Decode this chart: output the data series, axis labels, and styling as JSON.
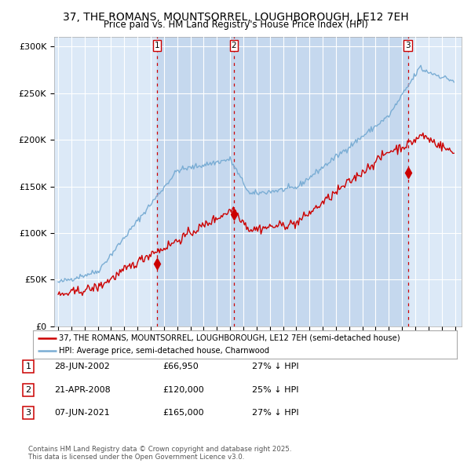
{
  "title": "37, THE ROMANS, MOUNTSORREL, LOUGHBOROUGH, LE12 7EH",
  "subtitle": "Price paid vs. HM Land Registry's House Price Index (HPI)",
  "title_fontsize": 10,
  "subtitle_fontsize": 8.5,
  "ylabel_ticks": [
    "£0",
    "£50K",
    "£100K",
    "£150K",
    "£200K",
    "£250K",
    "£300K"
  ],
  "ytick_values": [
    0,
    50000,
    100000,
    150000,
    200000,
    250000,
    300000
  ],
  "ylim": [
    0,
    310000
  ],
  "xlim_start": 1994.7,
  "xlim_end": 2025.5,
  "background_color": "#ffffff",
  "plot_bg_color": "#dce9f7",
  "grid_color": "#ffffff",
  "sale1_year": 2002.48,
  "sale1_price": 66950,
  "sale2_year": 2008.29,
  "sale2_price": 120000,
  "sale3_year": 2021.44,
  "sale3_price": 165000,
  "vline_color": "#cc0000",
  "hpi_color": "#7aadd4",
  "sold_color": "#cc0000",
  "shade_color": "#c5d8ee",
  "legend_label_sold": "37, THE ROMANS, MOUNTSORREL, LOUGHBOROUGH, LE12 7EH (semi-detached house)",
  "legend_label_hpi": "HPI: Average price, semi-detached house, Charnwood",
  "table_data": [
    {
      "num": "1",
      "date": "28-JUN-2002",
      "price": "£66,950",
      "note": "27% ↓ HPI"
    },
    {
      "num": "2",
      "date": "21-APR-2008",
      "price": "£120,000",
      "note": "25% ↓ HPI"
    },
    {
      "num": "3",
      "date": "07-JUN-2021",
      "price": "£165,000",
      "note": "27% ↓ HPI"
    }
  ],
  "footer": "Contains HM Land Registry data © Crown copyright and database right 2025.\nThis data is licensed under the Open Government Licence v3.0."
}
